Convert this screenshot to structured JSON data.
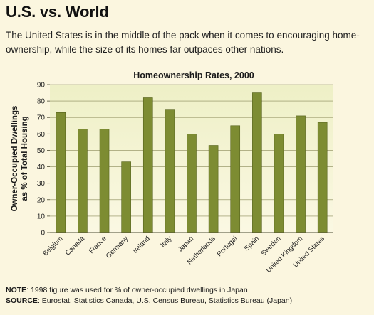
{
  "header": {
    "title": "U.S. vs. World",
    "subtitle": "The United States is in the middle of the pack when it comes to encouraging home-ownership, while the size of its homes far outpaces other nations."
  },
  "footer": {
    "note_label": "NOTE",
    "note_text": ": 1998 figure was used for % of owner-occupied dwellings in Japan",
    "source_label": "SOURCE",
    "source_text": ": Eurostat, Statistics Canada, U.S. Census Bureau, Statistics Bureau (Japan)"
  },
  "colors": {
    "background": "#fbf6df",
    "plot_background": "#fbf8e3",
    "plot_gradient_top": "#eef0c6",
    "bar_fill": "#7d8c32",
    "bar_stroke": "#55621c",
    "grid": "#8a8a5a"
  },
  "chart_data": {
    "type": "bar",
    "title": "Homeownership Rates, 2000",
    "ylabel": "Owner-Occupied Dwellings as % of Total Housing",
    "ylabel_lines": [
      "Owner-Occupied Dwellings",
      "as % of Total Housing"
    ],
    "xlabel": "",
    "categories": [
      "Belgium",
      "Canada",
      "France",
      "Germany",
      "Ireland",
      "Italy",
      "Japan",
      "Netherlands",
      "Portugal",
      "Spain",
      "Sweden",
      "United Kingdom",
      "United States"
    ],
    "values": [
      73,
      63,
      63,
      43,
      82,
      75,
      60,
      53,
      65,
      85,
      60,
      71,
      67
    ],
    "ylim": [
      0,
      90
    ],
    "yticks": [
      0,
      10,
      20,
      30,
      40,
      50,
      60,
      70,
      80,
      90
    ],
    "grid": true,
    "legend": "none"
  }
}
